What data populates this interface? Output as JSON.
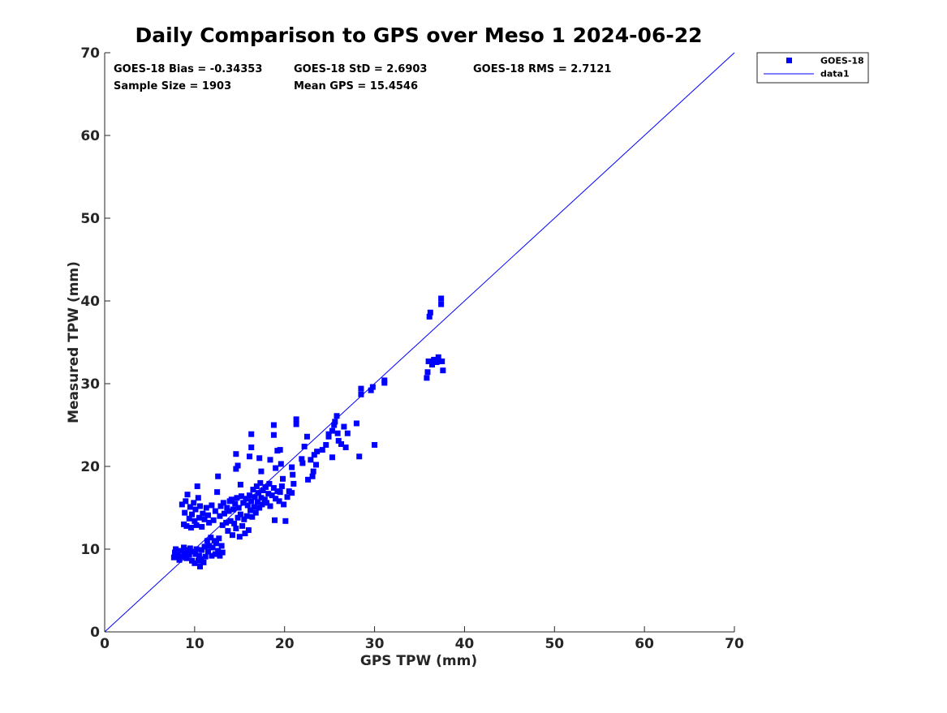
{
  "chart_data": {
    "type": "scatter",
    "title": "Daily Comparison to GPS over Meso 1 2024-06-22",
    "xlabel": "GPS TPW (mm)",
    "ylabel": "Measured TPW (mm)",
    "xlim": [
      0,
      70
    ],
    "ylim": [
      0,
      70
    ],
    "xticks": [
      0,
      10,
      20,
      30,
      40,
      50,
      60,
      70
    ],
    "yticks": [
      0,
      10,
      20,
      30,
      40,
      50,
      60,
      70
    ],
    "grid": false,
    "legend_position": "outside-top-right",
    "stats": [
      "GOES-18 Bias = -0.34353",
      "GOES-18 StD = 2.6903",
      "GOES-18 RMS = 2.7121",
      "Sample Size = 1903",
      "Mean GPS = 15.4546"
    ],
    "series": [
      {
        "name": "GOES-18",
        "kind": "scatter",
        "marker": "square",
        "color": "#0000ff",
        "points": [
          [
            7.7,
            9.0
          ],
          [
            7.8,
            9.6
          ],
          [
            7.9,
            10.0
          ],
          [
            8.1,
            9.3
          ],
          [
            8.3,
            8.7
          ],
          [
            8.5,
            9.8
          ],
          [
            8.7,
            9.1
          ],
          [
            8.8,
            10.2
          ],
          [
            8.9,
            9.5
          ],
          [
            9.1,
            8.9
          ],
          [
            9.2,
            9.9
          ],
          [
            9.4,
            9.3
          ],
          [
            9.5,
            10.1
          ],
          [
            9.7,
            8.6
          ],
          [
            9.8,
            9.7
          ],
          [
            10.0,
            8.3
          ],
          [
            10.1,
            9.4
          ],
          [
            10.2,
            10.0
          ],
          [
            10.4,
            8.6
          ],
          [
            10.5,
            9.2
          ],
          [
            10.6,
            7.9
          ],
          [
            10.7,
            8.8
          ],
          [
            10.8,
            9.9
          ],
          [
            11.0,
            8.4
          ],
          [
            11.1,
            10.3
          ],
          [
            11.2,
            9.1
          ],
          [
            11.4,
            11.0
          ],
          [
            11.5,
            9.7
          ],
          [
            11.6,
            10.4
          ],
          [
            11.8,
            11.4
          ],
          [
            11.9,
            9.2
          ],
          [
            12.0,
            10.2
          ],
          [
            12.2,
            11.0
          ],
          [
            12.3,
            9.4
          ],
          [
            12.4,
            10.7
          ],
          [
            12.6,
            9.8
          ],
          [
            12.7,
            11.3
          ],
          [
            12.8,
            9.2
          ],
          [
            13.0,
            10.4
          ],
          [
            13.1,
            9.6
          ],
          [
            8.6,
            15.4
          ],
          [
            8.8,
            13.0
          ],
          [
            8.9,
            14.4
          ],
          [
            9.0,
            15.8
          ],
          [
            9.1,
            12.8
          ],
          [
            9.2,
            16.6
          ],
          [
            9.4,
            13.7
          ],
          [
            9.5,
            15.1
          ],
          [
            9.6,
            12.6
          ],
          [
            9.7,
            14.2
          ],
          [
            9.9,
            15.6
          ],
          [
            10.0,
            13.4
          ],
          [
            10.1,
            14.8
          ],
          [
            10.2,
            12.9
          ],
          [
            10.4,
            16.2
          ],
          [
            10.5,
            13.8
          ],
          [
            10.6,
            15.2
          ],
          [
            10.8,
            12.7
          ],
          [
            10.9,
            14.3
          ],
          [
            11.1,
            13.6
          ],
          [
            11.3,
            15.0
          ],
          [
            11.5,
            14.1
          ],
          [
            10.3,
            17.6
          ],
          [
            11.6,
            13.2
          ],
          [
            11.9,
            15.3
          ],
          [
            12.1,
            13.5
          ],
          [
            12.3,
            14.6
          ],
          [
            12.5,
            16.9
          ],
          [
            12.6,
            18.8
          ],
          [
            12.8,
            14.0
          ],
          [
            12.9,
            15.2
          ],
          [
            13.1,
            12.9
          ],
          [
            13.2,
            15.6
          ],
          [
            13.3,
            14.3
          ],
          [
            13.5,
            13.2
          ],
          [
            13.6,
            15.0
          ],
          [
            13.7,
            12.2
          ],
          [
            13.8,
            14.6
          ],
          [
            13.9,
            15.8
          ],
          [
            14.0,
            13.4
          ],
          [
            14.1,
            16.0
          ],
          [
            14.2,
            11.7
          ],
          [
            14.3,
            14.8
          ],
          [
            14.4,
            13.1
          ],
          [
            14.5,
            15.5
          ],
          [
            14.6,
            12.5
          ],
          [
            14.7,
            16.2
          ],
          [
            14.8,
            13.8
          ],
          [
            14.9,
            15.0
          ],
          [
            15.0,
            11.5
          ],
          [
            15.1,
            14.2
          ],
          [
            15.2,
            16.4
          ],
          [
            15.3,
            12.8
          ],
          [
            15.4,
            15.6
          ],
          [
            15.5,
            13.6
          ],
          [
            15.6,
            11.9
          ],
          [
            15.7,
            16.1
          ],
          [
            15.8,
            14.0
          ],
          [
            15.9,
            15.3
          ],
          [
            16.0,
            12.3
          ],
          [
            16.1,
            16.5
          ],
          [
            16.2,
            14.7
          ],
          [
            16.3,
            15.8
          ],
          [
            16.4,
            13.9
          ],
          [
            16.5,
            17.2
          ],
          [
            16.6,
            15.1
          ],
          [
            16.7,
            16.3
          ],
          [
            16.8,
            14.4
          ],
          [
            16.9,
            17.6
          ],
          [
            17.0,
            15.7
          ],
          [
            17.1,
            16.8
          ],
          [
            17.2,
            15.0
          ],
          [
            17.3,
            18.0
          ],
          [
            17.4,
            16.2
          ],
          [
            17.5,
            15.4
          ],
          [
            17.6,
            17.1
          ],
          [
            17.8,
            16.0
          ],
          [
            17.9,
            17.5
          ],
          [
            18.0,
            15.6
          ],
          [
            18.2,
            16.7
          ],
          [
            18.3,
            17.9
          ],
          [
            18.4,
            15.2
          ],
          [
            18.6,
            16.5
          ],
          [
            18.8,
            17.4
          ],
          [
            18.9,
            13.5
          ],
          [
            19.0,
            16.1
          ],
          [
            19.2,
            17.0
          ],
          [
            19.4,
            15.8
          ],
          [
            19.5,
            16.9
          ],
          [
            19.7,
            17.6
          ],
          [
            19.9,
            15.4
          ],
          [
            20.1,
            13.4
          ],
          [
            20.3,
            16.3
          ],
          [
            20.5,
            17.0
          ],
          [
            20.8,
            16.8
          ],
          [
            21.0,
            17.9
          ],
          [
            14.6,
            19.7
          ],
          [
            14.6,
            21.5
          ],
          [
            14.8,
            20.1
          ],
          [
            15.1,
            17.8
          ],
          [
            16.1,
            21.2
          ],
          [
            16.3,
            22.3
          ],
          [
            16.3,
            23.9
          ],
          [
            17.2,
            21.0
          ],
          [
            17.4,
            19.4
          ],
          [
            18.4,
            20.8
          ],
          [
            18.8,
            23.8
          ],
          [
            18.8,
            25.0
          ],
          [
            19.0,
            19.8
          ],
          [
            19.2,
            21.9
          ],
          [
            19.5,
            22.0
          ],
          [
            19.6,
            20.3
          ],
          [
            19.8,
            18.5
          ],
          [
            20.8,
            19.9
          ],
          [
            20.9,
            19.0
          ],
          [
            21.3,
            25.1
          ],
          [
            21.3,
            25.7
          ],
          [
            21.9,
            20.9
          ],
          [
            22.0,
            20.4
          ],
          [
            22.2,
            22.4
          ],
          [
            22.5,
            23.6
          ],
          [
            22.6,
            18.4
          ],
          [
            22.9,
            20.8
          ],
          [
            23.1,
            18.8
          ],
          [
            23.2,
            19.4
          ],
          [
            23.3,
            21.4
          ],
          [
            23.5,
            20.2
          ],
          [
            23.6,
            21.8
          ],
          [
            24.2,
            22.0
          ],
          [
            24.6,
            22.6
          ],
          [
            24.9,
            23.6
          ],
          [
            25.3,
            21.1
          ],
          [
            25.3,
            24.3
          ],
          [
            25.6,
            25.4
          ],
          [
            25.8,
            26.1
          ],
          [
            25.9,
            24.0
          ],
          [
            26.0,
            23.1
          ],
          [
            26.3,
            22.7
          ],
          [
            26.6,
            24.8
          ],
          [
            26.8,
            22.3
          ],
          [
            27.0,
            24.0
          ],
          [
            28.0,
            25.2
          ],
          [
            28.3,
            21.2
          ],
          [
            28.5,
            28.7
          ],
          [
            28.5,
            29.4
          ],
          [
            29.6,
            29.2
          ],
          [
            29.8,
            29.6
          ],
          [
            30.0,
            22.6
          ],
          [
            31.1,
            30.1
          ],
          [
            31.1,
            30.4
          ],
          [
            24.9,
            23.9
          ],
          [
            25.5,
            25.0
          ],
          [
            35.8,
            30.7
          ],
          [
            35.9,
            31.4
          ],
          [
            36.0,
            32.7
          ],
          [
            36.1,
            38.1
          ],
          [
            36.2,
            38.6
          ],
          [
            36.4,
            32.3
          ],
          [
            36.6,
            32.9
          ],
          [
            36.9,
            32.6
          ],
          [
            37.1,
            33.2
          ],
          [
            37.4,
            39.6
          ],
          [
            37.4,
            40.3
          ],
          [
            37.5,
            32.7
          ],
          [
            37.6,
            31.6
          ]
        ]
      },
      {
        "name": "data1",
        "kind": "line",
        "color": "#0000ff",
        "x": [
          0,
          70
        ],
        "y": [
          0,
          70
        ]
      }
    ]
  }
}
